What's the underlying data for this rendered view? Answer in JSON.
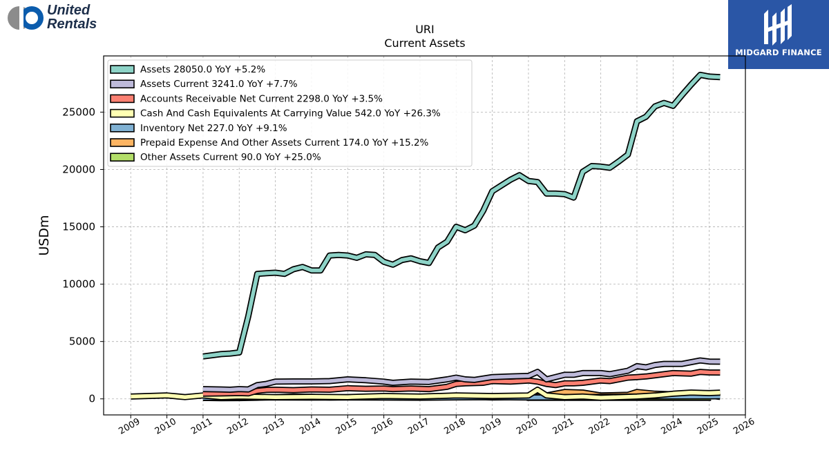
{
  "brand_left": {
    "line1": "United",
    "line2": "Rentals"
  },
  "brand_right": {
    "name": "MIDGARD FINANCE"
  },
  "chart_data": {
    "type": "line",
    "title": "URI",
    "subtitle": "Current  Assets",
    "ylabel": "USDm",
    "xlabel": "",
    "xlim": [
      2008.25,
      2026.0
    ],
    "ylim": [
      -1400,
      29900
    ],
    "x_ticks": [
      "2009",
      "2010",
      "2011",
      "2012",
      "2013",
      "2014",
      "2015",
      "2016",
      "2017",
      "2018",
      "2019",
      "2020",
      "2021",
      "2022",
      "2023",
      "2024",
      "2025",
      "2026"
    ],
    "y_ticks": [
      0,
      5000,
      10000,
      15000,
      20000,
      25000
    ],
    "y_tick_labels": [
      "0",
      "5000",
      "10000",
      "15000",
      "20000",
      "25000"
    ],
    "grid": true,
    "legend_position": "top-left",
    "series": [
      {
        "name": "Assets",
        "legend": "Assets  28050.0 YoY +5.2%",
        "color": "#8dd3c7",
        "points": [
          [
            2011.0,
            3700
          ],
          [
            2011.5,
            3900
          ],
          [
            2011.75,
            3950
          ],
          [
            2012.0,
            4050
          ],
          [
            2012.25,
            7200
          ],
          [
            2012.5,
            10900
          ],
          [
            2012.75,
            10950
          ],
          [
            2013.0,
            11000
          ],
          [
            2013.25,
            10900
          ],
          [
            2013.5,
            11300
          ],
          [
            2013.75,
            11500
          ],
          [
            2014.0,
            11200
          ],
          [
            2014.25,
            11200
          ],
          [
            2014.5,
            12500
          ],
          [
            2014.75,
            12550
          ],
          [
            2015.0,
            12500
          ],
          [
            2015.25,
            12300
          ],
          [
            2015.5,
            12600
          ],
          [
            2015.75,
            12550
          ],
          [
            2016.0,
            11950
          ],
          [
            2016.25,
            11700
          ],
          [
            2016.5,
            12100
          ],
          [
            2016.75,
            12250
          ],
          [
            2017.0,
            12000
          ],
          [
            2017.25,
            11850
          ],
          [
            2017.5,
            13200
          ],
          [
            2017.75,
            13700
          ],
          [
            2018.0,
            15000
          ],
          [
            2018.25,
            14700
          ],
          [
            2018.5,
            15100
          ],
          [
            2018.75,
            16400
          ],
          [
            2019.0,
            18100
          ],
          [
            2019.25,
            18600
          ],
          [
            2019.5,
            19100
          ],
          [
            2019.75,
            19500
          ],
          [
            2020.0,
            19000
          ],
          [
            2020.25,
            18900
          ],
          [
            2020.5,
            17900
          ],
          [
            2020.75,
            17900
          ],
          [
            2021.0,
            17850
          ],
          [
            2021.25,
            17550
          ],
          [
            2021.5,
            19800
          ],
          [
            2021.75,
            20300
          ],
          [
            2022.0,
            20250
          ],
          [
            2022.25,
            20150
          ],
          [
            2022.5,
            20700
          ],
          [
            2022.75,
            21300
          ],
          [
            2023.0,
            24200
          ],
          [
            2023.25,
            24600
          ],
          [
            2023.5,
            25500
          ],
          [
            2023.75,
            25800
          ],
          [
            2024.0,
            25550
          ],
          [
            2024.25,
            26500
          ],
          [
            2024.5,
            27400
          ],
          [
            2024.75,
            28250
          ],
          [
            2025.0,
            28100
          ],
          [
            2025.3,
            28050
          ]
        ]
      },
      {
        "name": "Assets Current",
        "legend": "Assets Current  3241.0 YoY +7.7%",
        "color": "#bebada",
        "points": [
          [
            2011.0,
            850
          ],
          [
            2011.5,
            820
          ],
          [
            2011.75,
            800
          ],
          [
            2012.0,
            850
          ],
          [
            2012.25,
            820
          ],
          [
            2012.5,
            1200
          ],
          [
            2012.75,
            1300
          ],
          [
            2013.0,
            1500
          ],
          [
            2013.5,
            1520
          ],
          [
            2014.0,
            1520
          ],
          [
            2014.5,
            1550
          ],
          [
            2015.0,
            1700
          ],
          [
            2015.5,
            1620
          ],
          [
            2016.0,
            1500
          ],
          [
            2016.25,
            1400
          ],
          [
            2016.75,
            1500
          ],
          [
            2017.25,
            1480
          ],
          [
            2017.75,
            1700
          ],
          [
            2018.0,
            1850
          ],
          [
            2018.25,
            1700
          ],
          [
            2018.5,
            1650
          ],
          [
            2019.0,
            1900
          ],
          [
            2019.5,
            1950
          ],
          [
            2020.0,
            2000
          ],
          [
            2020.25,
            2350
          ],
          [
            2020.5,
            1700
          ],
          [
            2020.75,
            1900
          ],
          [
            2021.0,
            2100
          ],
          [
            2021.25,
            2100
          ],
          [
            2021.5,
            2250
          ],
          [
            2022.0,
            2250
          ],
          [
            2022.25,
            2150
          ],
          [
            2022.75,
            2450
          ],
          [
            2023.0,
            2850
          ],
          [
            2023.25,
            2750
          ],
          [
            2023.5,
            2950
          ],
          [
            2023.75,
            3050
          ],
          [
            2024.25,
            3050
          ],
          [
            2024.5,
            3200
          ],
          [
            2024.75,
            3350
          ],
          [
            2025.0,
            3250
          ],
          [
            2025.3,
            3241
          ]
        ]
      },
      {
        "name": "Accounts Receivable Net Current",
        "legend": "Accounts Receivable Net Current  2298.0 YoY +3.5%",
        "color": "#fb8072",
        "points": [
          [
            2011.0,
            450
          ],
          [
            2011.5,
            470
          ],
          [
            2012.0,
            500
          ],
          [
            2012.25,
            480
          ],
          [
            2012.5,
            700
          ],
          [
            2012.75,
            780
          ],
          [
            2013.0,
            800
          ],
          [
            2013.5,
            760
          ],
          [
            2014.0,
            820
          ],
          [
            2014.5,
            800
          ],
          [
            2015.0,
            930
          ],
          [
            2015.5,
            880
          ],
          [
            2016.0,
            900
          ],
          [
            2016.25,
            850
          ],
          [
            2016.75,
            900
          ],
          [
            2017.25,
            850
          ],
          [
            2017.75,
            1050
          ],
          [
            2018.0,
            1300
          ],
          [
            2018.25,
            1350
          ],
          [
            2018.75,
            1400
          ],
          [
            2019.0,
            1550
          ],
          [
            2019.5,
            1500
          ],
          [
            2020.0,
            1600
          ],
          [
            2020.25,
            1500
          ],
          [
            2020.5,
            1300
          ],
          [
            2020.75,
            1200
          ],
          [
            2021.0,
            1350
          ],
          [
            2021.25,
            1350
          ],
          [
            2021.5,
            1400
          ],
          [
            2022.0,
            1600
          ],
          [
            2022.25,
            1550
          ],
          [
            2022.75,
            1850
          ],
          [
            2023.0,
            1900
          ],
          [
            2023.25,
            1950
          ],
          [
            2023.75,
            2150
          ],
          [
            2024.0,
            2250
          ],
          [
            2024.5,
            2200
          ],
          [
            2024.75,
            2350
          ],
          [
            2025.0,
            2300
          ],
          [
            2025.3,
            2298
          ]
        ]
      },
      {
        "name": "Cash And Cash Equivalents At Carrying Value",
        "legend": "Cash And Cash Equivalents At Carrying Value  542.0 YoY +26.3%",
        "color": "#ffffb3",
        "points": [
          [
            2009.0,
            200
          ],
          [
            2010.0,
            300
          ],
          [
            2010.5,
            150
          ],
          [
            2011.0,
            300
          ],
          [
            2011.5,
            150
          ],
          [
            2012.0,
            200
          ],
          [
            2013.0,
            150
          ],
          [
            2014.0,
            180
          ],
          [
            2015.0,
            150
          ],
          [
            2016.0,
            250
          ],
          [
            2017.0,
            200
          ],
          [
            2018.0,
            300
          ],
          [
            2019.0,
            250
          ],
          [
            2020.0,
            300
          ],
          [
            2020.25,
            800
          ],
          [
            2020.5,
            300
          ],
          [
            2021.0,
            150
          ],
          [
            2021.5,
            200
          ],
          [
            2022.0,
            100
          ],
          [
            2023.0,
            200
          ],
          [
            2023.5,
            300
          ],
          [
            2024.0,
            450
          ],
          [
            2024.5,
            550
          ],
          [
            2025.0,
            500
          ],
          [
            2025.3,
            542
          ]
        ]
      },
      {
        "name": "Inventory Net",
        "legend": "Inventory Net  227.0 YoY +9.1%",
        "color": "#80b1d3",
        "points": [
          [
            2011.0,
            100
          ],
          [
            2012.0,
            110
          ],
          [
            2013.0,
            120
          ],
          [
            2014.0,
            110
          ],
          [
            2015.0,
            120
          ],
          [
            2016.0,
            110
          ],
          [
            2017.0,
            100
          ],
          [
            2018.0,
            130
          ],
          [
            2019.0,
            140
          ],
          [
            2020.0,
            120
          ],
          [
            2021.0,
            130
          ],
          [
            2022.0,
            170
          ],
          [
            2023.0,
            200
          ],
          [
            2024.0,
            210
          ],
          [
            2025.0,
            220
          ],
          [
            2025.3,
            227
          ]
        ]
      },
      {
        "name": "Prepaid Expense And Other Assets Current",
        "legend": "Prepaid Expense And Other Assets Current  174.0 YoY +15.2%",
        "color": "#fdb462",
        "points": [
          [
            2011.0,
            80
          ],
          [
            2011.5,
            60
          ],
          [
            2012.0,
            70
          ],
          [
            2012.5,
            100
          ],
          [
            2013.0,
            150
          ],
          [
            2013.5,
            200
          ],
          [
            2014.0,
            180
          ],
          [
            2014.5,
            120
          ],
          [
            2015.0,
            150
          ],
          [
            2016.0,
            200
          ],
          [
            2017.0,
            150
          ],
          [
            2018.0,
            200
          ],
          [
            2019.0,
            120
          ],
          [
            2020.0,
            150
          ],
          [
            2020.5,
            300
          ],
          [
            2021.0,
            600
          ],
          [
            2021.5,
            550
          ],
          [
            2022.0,
            300
          ],
          [
            2022.75,
            350
          ],
          [
            2023.0,
            600
          ],
          [
            2023.5,
            450
          ],
          [
            2024.0,
            400
          ],
          [
            2024.5,
            350
          ],
          [
            2025.0,
            300
          ],
          [
            2025.3,
            174
          ]
        ]
      },
      {
        "name": "Other Assets Current",
        "legend": "Other Assets Current  90.0 YoY +25.0%",
        "color": "#b3de69",
        "points": [
          [
            2019.95,
            90
          ],
          [
            2025.05,
            90
          ]
        ]
      }
    ]
  }
}
